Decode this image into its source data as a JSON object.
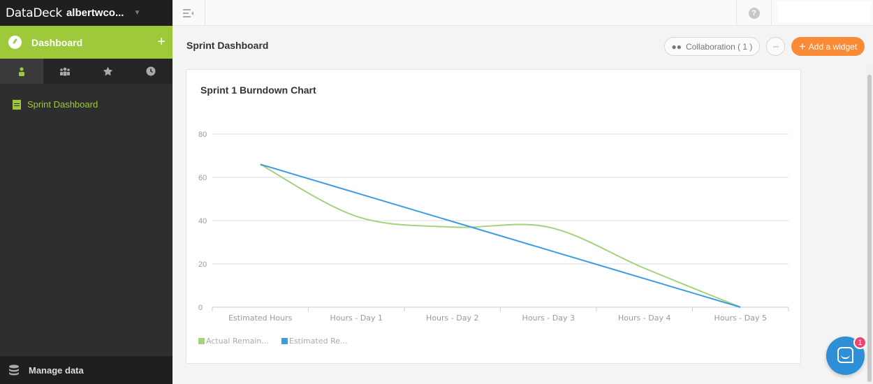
{
  "sidebar": {
    "logo": "DataDeck",
    "account": "albertwco...",
    "dashboard_label": "Dashboard",
    "tabs": [
      "person-icon",
      "team-icon",
      "star-icon",
      "clock-icon"
    ],
    "items": [
      {
        "label": "Sprint Dashboard"
      }
    ],
    "manage_label": "Manage data"
  },
  "header": {
    "title": "Sprint Dashboard",
    "collaboration_label": "Collaboration ( 1 )",
    "more_label": "···",
    "add_widget_label": "Add a widget"
  },
  "widget": {
    "title": "Sprint 1 Burndown Chart"
  },
  "chat": {
    "badge_count": "1"
  },
  "colors": {
    "accent_green": "#9dc93a",
    "accent_orange": "#f98a36",
    "series_actual": "#a6d27c",
    "series_estimated": "#3a9de1"
  },
  "chart_data": {
    "type": "line",
    "title": "Sprint 1 Burndown Chart",
    "categories": [
      "Estimated Hours",
      "Hours - Day 1",
      "Hours - Day 2",
      "Hours - Day 3",
      "Hours - Day 4",
      "Hours - Day 5"
    ],
    "series": [
      {
        "name": "Actual Remain...",
        "values": [
          66,
          42,
          37,
          37,
          18,
          0
        ]
      },
      {
        "name": "Estimated Re...",
        "values": [
          66,
          52.8,
          39.6,
          26.4,
          13.2,
          0
        ]
      }
    ],
    "ylim": [
      0,
      80
    ],
    "yticks": [
      0,
      20,
      40,
      60,
      80
    ],
    "grid": true,
    "legend_position": "bottom-left"
  }
}
